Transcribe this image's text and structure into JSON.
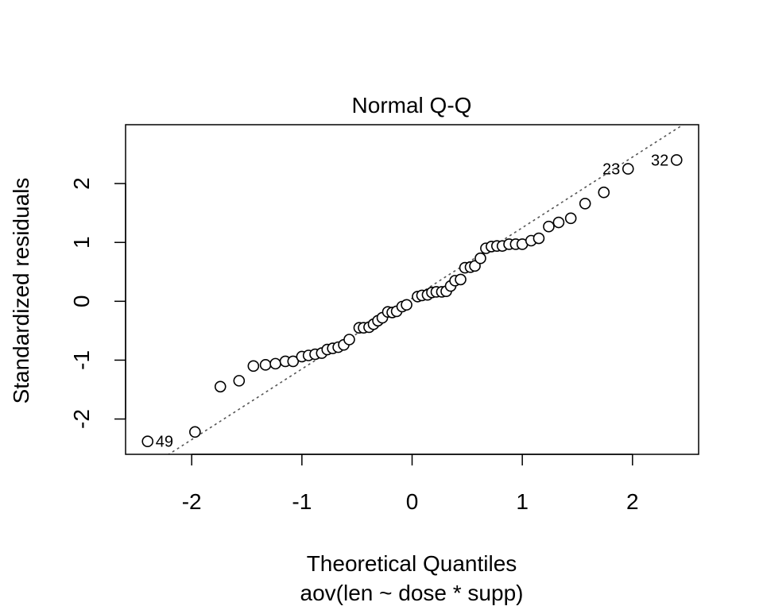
{
  "chart_data": {
    "type": "scatter",
    "title": "Normal Q-Q",
    "xlabel": "Theoretical Quantiles",
    "subtitle": "aov(len ~ dose * supp)",
    "ylabel": "Standardized residuals",
    "xlim": [
      -2.6,
      2.6
    ],
    "ylim": [
      -2.6,
      3.0
    ],
    "x_ticks": [
      {
        "value": -2,
        "label": "-2"
      },
      {
        "value": -1,
        "label": "-1"
      },
      {
        "value": 0,
        "label": "0"
      },
      {
        "value": 1,
        "label": "1"
      },
      {
        "value": 2,
        "label": "2"
      }
    ],
    "y_ticks": [
      {
        "value": -2,
        "label": "-2"
      },
      {
        "value": -1,
        "label": "-1"
      },
      {
        "value": 0,
        "label": "0"
      },
      {
        "value": 1,
        "label": "1"
      },
      {
        "value": 2,
        "label": "2"
      }
    ],
    "grid": false,
    "reference_line": {
      "style": "dotted",
      "color": "#555555",
      "slope": 1.2,
      "intercept": 0.05
    },
    "points": {
      "x": [
        -2.4,
        -1.97,
        -1.74,
        -1.57,
        -1.44,
        -1.33,
        -1.24,
        -1.15,
        -1.08,
        -1.0,
        -0.94,
        -0.88,
        -0.82,
        -0.77,
        -0.72,
        -0.67,
        -0.62,
        -0.57,
        -0.48,
        -0.44,
        -0.39,
        -0.35,
        -0.31,
        -0.27,
        -0.22,
        -0.18,
        -0.14,
        -0.09,
        -0.05,
        0.05,
        0.09,
        0.14,
        0.18,
        0.22,
        0.27,
        0.31,
        0.35,
        0.39,
        0.44,
        0.48,
        0.53,
        0.57,
        0.62,
        0.67,
        0.72,
        0.77,
        0.82,
        0.88,
        0.94,
        1.0,
        1.08,
        1.15,
        1.24,
        1.33,
        1.44,
        1.57,
        1.74,
        1.96,
        2.4
      ],
      "y": [
        -2.38,
        -2.22,
        -1.45,
        -1.35,
        -1.1,
        -1.08,
        -1.06,
        -1.02,
        -1.02,
        -0.94,
        -0.92,
        -0.9,
        -0.88,
        -0.82,
        -0.8,
        -0.78,
        -0.74,
        -0.65,
        -0.45,
        -0.45,
        -0.44,
        -0.39,
        -0.33,
        -0.28,
        -0.18,
        -0.19,
        -0.17,
        -0.09,
        -0.06,
        0.08,
        0.1,
        0.11,
        0.15,
        0.16,
        0.16,
        0.17,
        0.26,
        0.35,
        0.37,
        0.57,
        0.58,
        0.6,
        0.73,
        0.9,
        0.93,
        0.94,
        0.94,
        0.97,
        0.97,
        0.97,
        1.03,
        1.07,
        1.27,
        1.34,
        1.41,
        1.66,
        1.85,
        2.25,
        2.4
      ]
    },
    "labeled_points": [
      {
        "label": "49",
        "x": -2.4,
        "y": -2.38,
        "side": "right"
      },
      {
        "label": "23",
        "x": 1.96,
        "y": 2.25,
        "side": "left"
      },
      {
        "label": "32",
        "x": 2.4,
        "y": 2.4,
        "side": "left"
      }
    ]
  }
}
